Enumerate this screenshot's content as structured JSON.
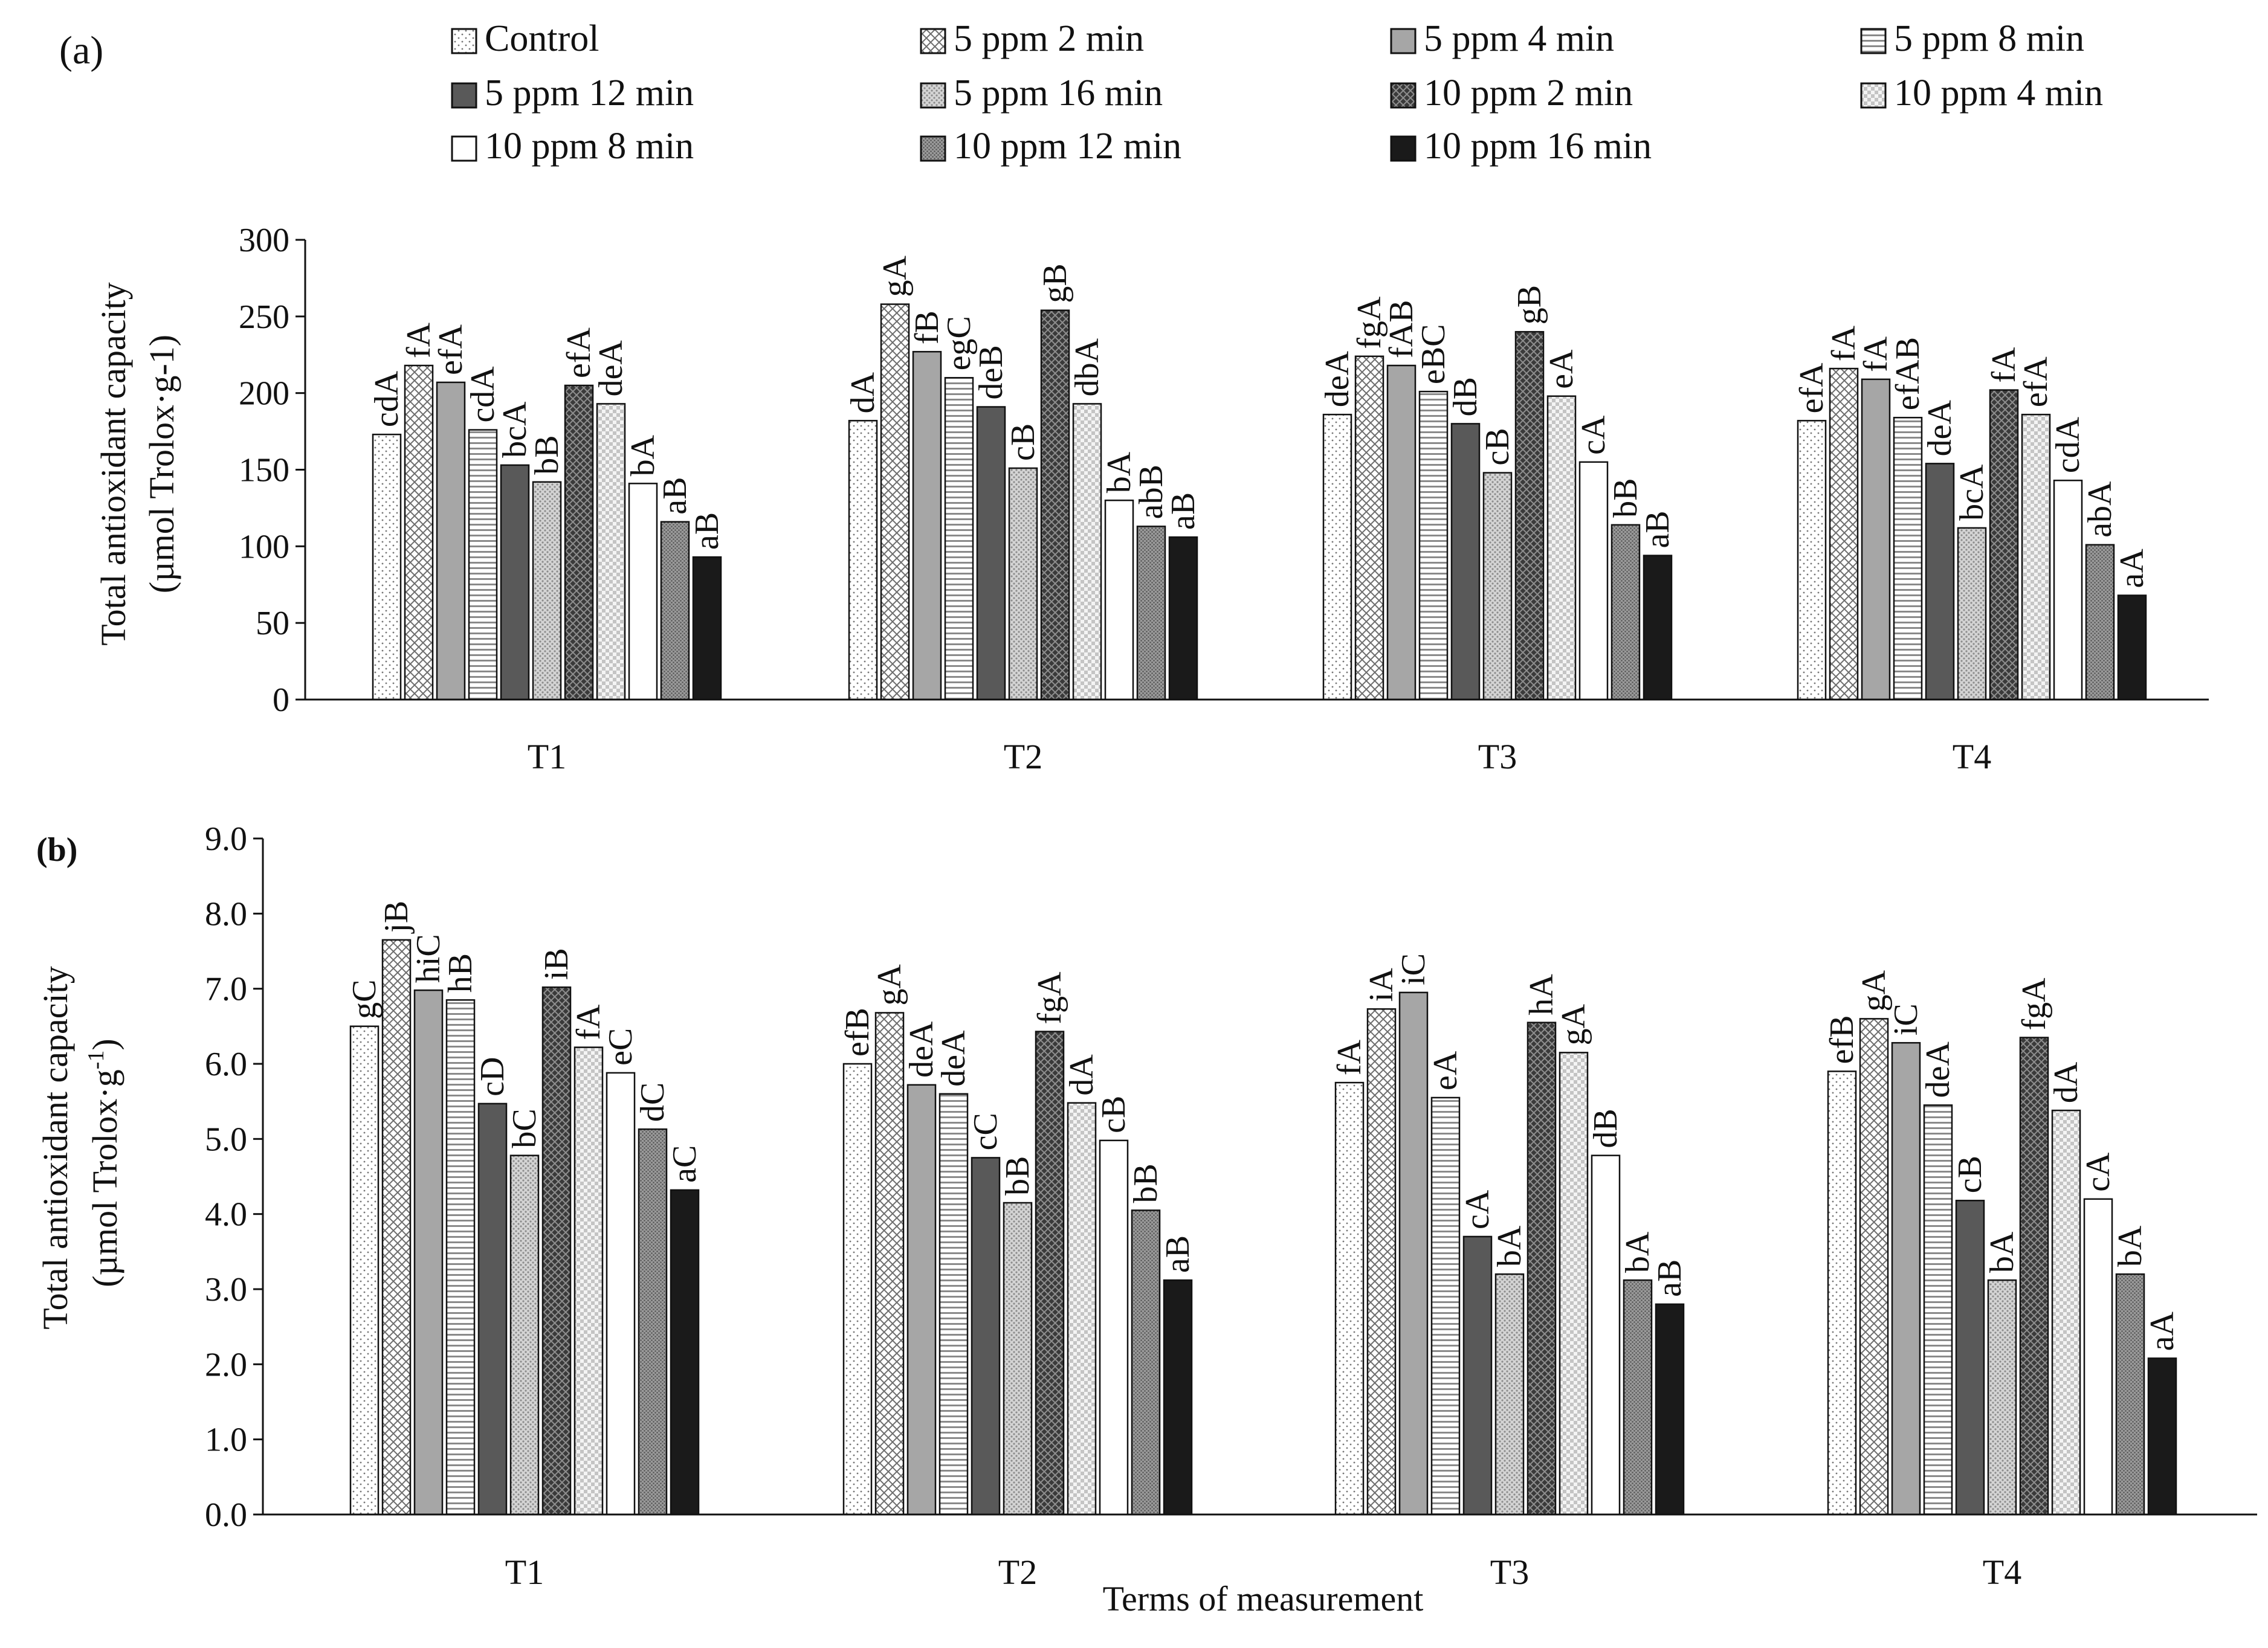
{
  "legend": [
    {
      "label": "Control",
      "pattern": "dots-light"
    },
    {
      "label": "5 ppm 2 min",
      "pattern": "crosshatch"
    },
    {
      "label": "5 ppm 4 min",
      "pattern": "solid-gray"
    },
    {
      "label": "5 ppm 8 min",
      "pattern": "horizontal-lines"
    },
    {
      "label": "5 ppm 12 min",
      "pattern": "solid-dark-gray"
    },
    {
      "label": "5 ppm 16 min",
      "pattern": "dots-medium"
    },
    {
      "label": "10 ppm 2 min",
      "pattern": "diamond-dark"
    },
    {
      "label": "10 ppm 4 min",
      "pattern": "checker-light"
    },
    {
      "label": "10 ppm 8 min",
      "pattern": "solid-white"
    },
    {
      "label": "10 ppm 12 min",
      "pattern": "dots-dense"
    },
    {
      "label": "10 ppm 16 min",
      "pattern": "solid-black"
    }
  ],
  "colors": {
    "black": "#1a1a1a",
    "gray": "#a6a6a6",
    "dark_gray": "#595959"
  },
  "chart_data": [
    {
      "type": "bar",
      "panel_label": "(a)",
      "categories": [
        "T1",
        "T2",
        "T3",
        "T4"
      ],
      "ylabel_lines": [
        "Total antioxidant capacity",
        "(µmol Trolox·g-1)"
      ],
      "ylim": [
        0,
        300
      ],
      "yticks": [
        0,
        50,
        100,
        150,
        200,
        250,
        300
      ],
      "tick_decimals": 0,
      "xlabel": "",
      "grid": false,
      "legend_position": "top",
      "series": [
        {
          "name": "Control",
          "values": [
            173,
            182,
            186,
            182
          ],
          "labels": [
            "cdA",
            "dA",
            "deA",
            "efA"
          ]
        },
        {
          "name": "5 ppm 2 min",
          "values": [
            218,
            258,
            224,
            216
          ],
          "labels": [
            "fA",
            "gA",
            "fgA",
            "fA"
          ]
        },
        {
          "name": "5 ppm 4 min",
          "values": [
            207,
            227,
            218,
            209
          ],
          "labels": [
            "efA",
            "fB",
            "fAB",
            "fA"
          ]
        },
        {
          "name": "5 ppm 8 min",
          "values": [
            176,
            210,
            201,
            184
          ],
          "labels": [
            "cdA",
            "egC",
            "eBC",
            "efAB"
          ]
        },
        {
          "name": "5 ppm 12 min",
          "values": [
            153,
            191,
            180,
            154
          ],
          "labels": [
            "bcA",
            "deB",
            "dB",
            "deA"
          ]
        },
        {
          "name": "5 ppm 16 min",
          "values": [
            142,
            151,
            148,
            112
          ],
          "labels": [
            "bB",
            "cB",
            "cB",
            "bcA"
          ]
        },
        {
          "name": "10 ppm 2 min",
          "values": [
            205,
            254,
            240,
            202
          ],
          "labels": [
            "efA",
            "gB",
            "gB",
            "fA"
          ]
        },
        {
          "name": "10 ppm 4 min",
          "values": [
            193,
            193,
            198,
            186
          ],
          "labels": [
            "deA",
            "dbA",
            "eA",
            "efA"
          ]
        },
        {
          "name": "10 ppm 8 min",
          "values": [
            141,
            130,
            155,
            143
          ],
          "labels": [
            "bA",
            "bA",
            "cA",
            "cdA"
          ]
        },
        {
          "name": "10 ppm 12 min",
          "values": [
            116,
            113,
            114,
            101
          ],
          "labels": [
            "aB",
            "abB",
            "bB",
            "abA"
          ]
        },
        {
          "name": "10 ppm 16 min",
          "values": [
            93,
            106,
            94,
            68
          ],
          "labels": [
            "aB",
            "aB",
            "aB",
            "aA"
          ]
        }
      ]
    },
    {
      "type": "bar",
      "panel_label": "(b)",
      "categories": [
        "T1",
        "T2",
        "T3",
        "T4"
      ],
      "ylabel_lines": [
        "Total antioxidant capacity",
        "(µmol Trolox·g",
        "-1",
        ")"
      ],
      "ylim": [
        0,
        9
      ],
      "yticks": [
        0,
        1,
        2,
        3,
        4,
        5,
        6,
        7,
        8,
        9
      ],
      "tick_decimals": 1,
      "xlabel": "Terms of measurement",
      "grid": false,
      "series": [
        {
          "name": "Control",
          "values": [
            6.5,
            6.0,
            5.75,
            5.9
          ],
          "labels": [
            "gC",
            "efB",
            "fA",
            "efB"
          ]
        },
        {
          "name": "5 ppm 2 min",
          "values": [
            7.65,
            6.68,
            6.73,
            6.6
          ],
          "labels": [
            "jB",
            "gA",
            "iA",
            "gA"
          ]
        },
        {
          "name": "5 ppm 4 min",
          "values": [
            6.98,
            5.72,
            6.95,
            6.28
          ],
          "labels": [
            "hiC",
            "deA",
            "iC",
            "iC"
          ]
        },
        {
          "name": "5 ppm 8 min",
          "values": [
            6.85,
            5.6,
            5.55,
            5.45
          ],
          "labels": [
            "hB",
            "deA",
            "eA",
            "deA"
          ]
        },
        {
          "name": "5 ppm 12 min",
          "values": [
            5.47,
            4.75,
            3.7,
            4.18
          ],
          "labels": [
            "cD",
            "cC",
            "cA",
            "cB"
          ]
        },
        {
          "name": "5 ppm 16 min",
          "values": [
            4.78,
            4.15,
            3.2,
            3.12
          ],
          "labels": [
            "bC",
            "bB",
            "bA",
            "bA"
          ]
        },
        {
          "name": "10 ppm 2 min",
          "values": [
            7.02,
            6.43,
            6.55,
            6.35
          ],
          "labels": [
            "iB",
            "fgA",
            "hA",
            "fgA"
          ]
        },
        {
          "name": "10 ppm 4 min",
          "values": [
            6.22,
            5.48,
            6.15,
            5.38
          ],
          "labels": [
            "fA",
            "dA",
            "gA",
            "dA"
          ]
        },
        {
          "name": "10 ppm 8 min",
          "values": [
            5.88,
            4.98,
            4.78,
            4.2
          ],
          "labels": [
            "eC",
            "cB",
            "dB",
            "cA"
          ]
        },
        {
          "name": "10 ppm 12 min",
          "values": [
            5.13,
            4.05,
            3.12,
            3.2
          ],
          "labels": [
            "dC",
            "bB",
            "bA",
            "bA"
          ]
        },
        {
          "name": "10 ppm 16 min",
          "values": [
            4.32,
            3.12,
            2.8,
            2.08
          ],
          "labels": [
            "aC",
            "aB",
            "aB",
            "aA"
          ]
        }
      ]
    }
  ]
}
